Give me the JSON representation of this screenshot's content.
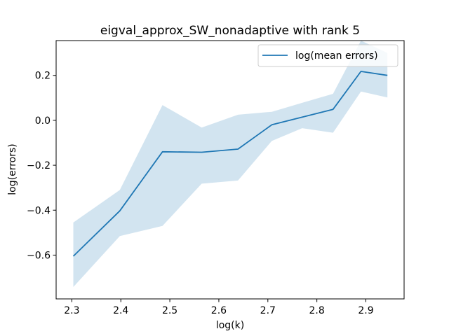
{
  "chart_data": {
    "type": "line",
    "title": "eigval_approx_SW_nonadaptive with rank 5",
    "xlabel": "log(k)",
    "ylabel": "log(errors)",
    "xlim": [
      2.268,
      2.978
    ],
    "ylim": [
      -0.795,
      0.355
    ],
    "xticks": [
      2.3,
      2.4,
      2.5,
      2.6,
      2.7,
      2.8,
      2.9
    ],
    "xtick_labels": [
      "2.3",
      "2.4",
      "2.5",
      "2.6",
      "2.7",
      "2.8",
      "2.9"
    ],
    "yticks": [
      -0.6,
      -0.4,
      -0.2,
      0.0,
      0.2
    ],
    "ytick_labels": [
      "−0.6",
      "−0.4",
      "−0.2",
      "0.0",
      "0.2"
    ],
    "legend_position": "top-right",
    "series": [
      {
        "name": "log(mean errors)",
        "color": "#1f77b4",
        "x": [
          2.303,
          2.398,
          2.485,
          2.565,
          2.639,
          2.708,
          2.833,
          2.89,
          2.944
        ],
        "y": [
          -0.605,
          -0.403,
          -0.14,
          -0.142,
          -0.128,
          -0.02,
          0.049,
          0.218,
          0.2
        ]
      }
    ],
    "band": {
      "color": "#1f77b4",
      "opacity": 0.2,
      "upper": [
        {
          "x": 2.303,
          "y": -0.455
        },
        {
          "x": 2.398,
          "y": -0.31
        },
        {
          "x": 2.485,
          "y": 0.068
        },
        {
          "x": 2.565,
          "y": -0.032
        },
        {
          "x": 2.639,
          "y": 0.025
        },
        {
          "x": 2.708,
          "y": 0.038
        },
        {
          "x": 2.77,
          "y": 0.078
        },
        {
          "x": 2.833,
          "y": 0.118
        },
        {
          "x": 2.89,
          "y": 0.355
        },
        {
          "x": 2.944,
          "y": 0.3
        }
      ],
      "lower": [
        {
          "x": 2.303,
          "y": -0.742
        },
        {
          "x": 2.398,
          "y": -0.515
        },
        {
          "x": 2.485,
          "y": -0.47
        },
        {
          "x": 2.565,
          "y": -0.282
        },
        {
          "x": 2.639,
          "y": -0.268
        },
        {
          "x": 2.708,
          "y": -0.092
        },
        {
          "x": 2.77,
          "y": -0.035
        },
        {
          "x": 2.833,
          "y": -0.055
        },
        {
          "x": 2.89,
          "y": 0.128
        },
        {
          "x": 2.944,
          "y": 0.102
        }
      ]
    }
  }
}
